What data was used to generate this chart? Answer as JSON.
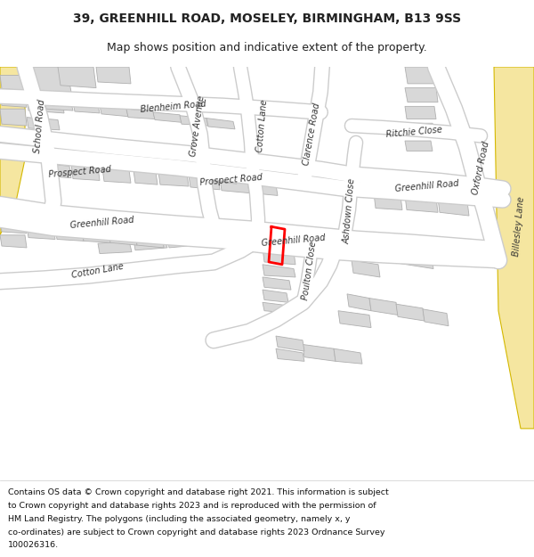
{
  "title_line1": "39, GREENHILL ROAD, MOSELEY, BIRMINGHAM, B13 9SS",
  "title_line2": "Map shows position and indicative extent of the property.",
  "footer_lines": [
    "Contains OS data © Crown copyright and database right 2021. This information is subject",
    "to Crown copyright and database rights 2023 and is reproduced with the permission of",
    "HM Land Registry. The polygons (including the associated geometry, namely x, y",
    "co-ordinates) are subject to Crown copyright and database rights 2023 Ordnance Survey",
    "100026316."
  ],
  "bg_color": "#ffffff",
  "map_bg": "#f5f5f5",
  "road_color": "#ffffff",
  "road_outline": "#cccccc",
  "building_color": "#d8d8d8",
  "building_outline": "#b0b0b0",
  "highlight_color": "#ff0000",
  "yellow_road_color": "#f5e6a0",
  "yellow_road_outline": "#d4b800"
}
